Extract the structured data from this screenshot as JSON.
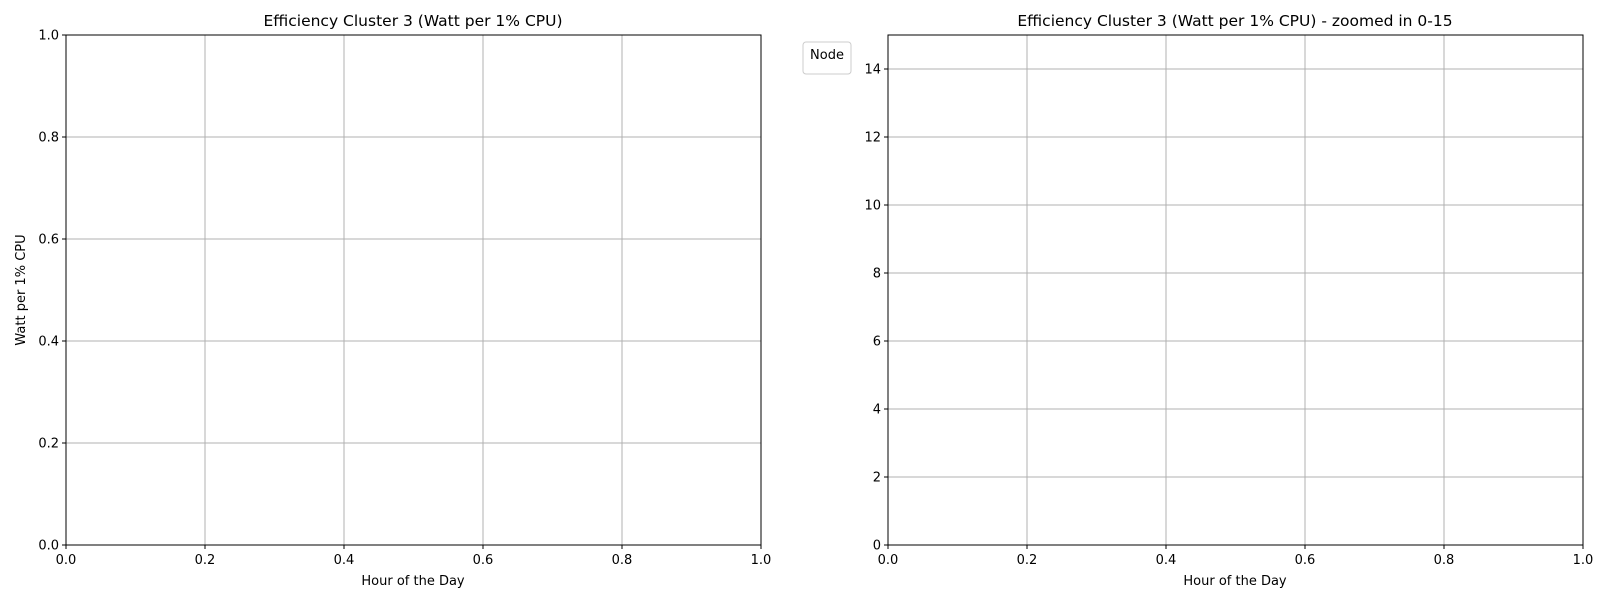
{
  "chart_data": [
    {
      "type": "line",
      "title": "Efficiency Cluster 3 (Watt per 1% CPU)",
      "xlabel": "Hour of the Day",
      "ylabel": "Watt per 1% CPU",
      "xlim": [
        0,
        1
      ],
      "ylim": [
        0,
        1
      ],
      "xticks": [
        0.0,
        0.2,
        0.4,
        0.6,
        0.8,
        1.0
      ],
      "xtick_labels": [
        "0.0",
        "0.2",
        "0.4",
        "0.6",
        "0.8",
        "1.0"
      ],
      "yticks": [
        0.0,
        0.2,
        0.4,
        0.6,
        0.8,
        1.0
      ],
      "ytick_labels": [
        "0.0",
        "0.2",
        "0.4",
        "0.6",
        "0.8",
        "1.0"
      ],
      "grid": true,
      "series": []
    },
    {
      "type": "line",
      "title": "Efficiency Cluster 3 (Watt per 1% CPU) - zoomed in 0-15",
      "xlabel": "Hour of the Day",
      "ylabel": "",
      "xlim": [
        0,
        1
      ],
      "ylim": [
        0,
        15
      ],
      "xticks": [
        0.0,
        0.2,
        0.4,
        0.6,
        0.8,
        1.0
      ],
      "xtick_labels": [
        "0.0",
        "0.2",
        "0.4",
        "0.6",
        "0.8",
        "1.0"
      ],
      "yticks": [
        0,
        2,
        4,
        6,
        8,
        10,
        12,
        14
      ],
      "ytick_labels": [
        "0",
        "2",
        "4",
        "6",
        "8",
        "10",
        "12",
        "14"
      ],
      "grid": true,
      "legend": {
        "title": "Node",
        "placement": "outside-left-top",
        "entries": []
      },
      "series": []
    }
  ],
  "colors": {
    "grid": "#b0b0b0",
    "axes": "#000000",
    "background": "#ffffff"
  }
}
